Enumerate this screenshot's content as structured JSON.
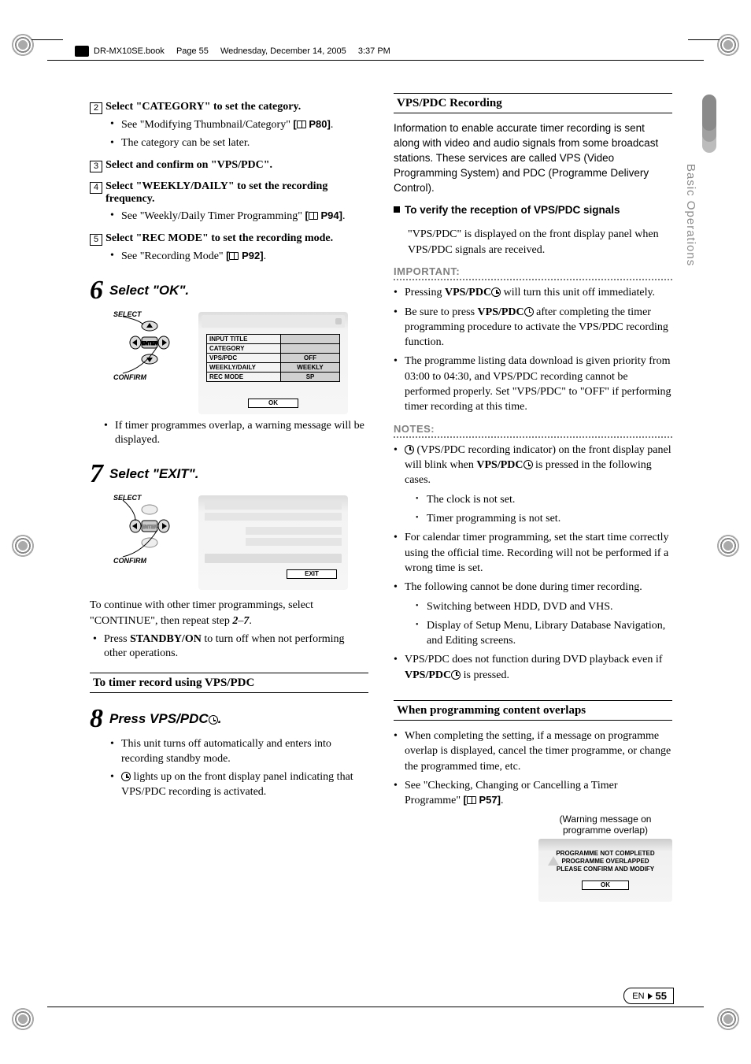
{
  "header": {
    "filename": "DR-MX10SE.book",
    "pageinfo": "Page 55",
    "date": "Wednesday, December 14, 2005",
    "time": "3:37 PM"
  },
  "sidetab": {
    "label": "Basic Operations"
  },
  "left": {
    "sub2": {
      "num": "2",
      "text": "Select \"CATEGORY\" to set the category."
    },
    "sub2_b1": "See \"Modifying Thumbnail/Category\"",
    "sub2_b1_ref": "P80",
    "sub2_b2": "The category can be set later.",
    "sub3": {
      "num": "3",
      "text": "Select and confirm on \"VPS/PDC\"."
    },
    "sub4": {
      "num": "4",
      "text": "Select \"WEEKLY/DAILY\" to set the recording frequency."
    },
    "sub4_b1": "See \"Weekly/Daily Timer Programming\"",
    "sub4_b1_ref": "P94",
    "sub5": {
      "num": "5",
      "text": "Select \"REC MODE\" to set the recording mode."
    },
    "sub5_b1": "See \"Recording Mode\"",
    "sub5_b1_ref": "P92",
    "step6": {
      "num": "6",
      "label": "Select \"OK\"."
    },
    "remote": {
      "select": "SELECT",
      "enter": "ENTER",
      "confirm": "CONFIRM"
    },
    "panel6": {
      "rows": [
        {
          "c1": "INPUT TITLE",
          "c2": ""
        },
        {
          "c1": "CATEGORY",
          "c2": ""
        },
        {
          "c1": "VPS/PDC",
          "c2": "OFF"
        },
        {
          "c1": "WEEKLY/DAILY",
          "c2": "WEEKLY"
        },
        {
          "c1": "REC MODE",
          "c2": "SP"
        }
      ],
      "ok": "OK"
    },
    "step6_note": "If timer programmes overlap, a warning message will be displayed.",
    "step7": {
      "num": "7",
      "label": "Select \"EXIT\"."
    },
    "panel7": {
      "exit": "EXIT"
    },
    "continue1": "To continue with other timer programmings, select \"CONTINUE\", then repeat step",
    "continue2_a": "2",
    "continue2_dash": "–",
    "continue2_b": "7",
    "continue2_c": ".",
    "press_standby_a": "Press ",
    "press_standby_b": "STANDBY/ON",
    "press_standby_c": " to turn off when not performing other operations.",
    "section_vps": "To timer record using VPS/PDC",
    "step8": {
      "num": "8",
      "label_a": "Press VPS/PDC",
      "label_b": "."
    },
    "step8_b1": "This unit turns off automatically and enters into recording standby mode.",
    "step8_b2": " lights up on the front display panel indicating that VPS/PDC recording is activated."
  },
  "right": {
    "head_vps": "VPS/PDC Recording",
    "intro": "Information to enable accurate timer recording is sent along with video and audio signals from some broadcast stations. These services are called VPS (Video Programming System) and PDC (Programme Delivery Control).",
    "verify_head": "To verify the reception of VPS/PDC signals",
    "verify_body": "\"VPS/PDC\" is displayed on the front display panel when VPS/PDC signals are received.",
    "important": "IMPORTANT:",
    "imp_b1_a": "Pressing ",
    "imp_b1_b": "VPS/PDC",
    "imp_b1_c": " will turn this unit off immediately.",
    "imp_b2_a": "Be sure to press ",
    "imp_b2_b": "VPS/PDC",
    "imp_b2_c": " after completing the timer programming procedure to activate the VPS/PDC recording function.",
    "imp_b3": "The programme listing data download is given priority from 03:00 to 04:30, and VPS/PDC recording cannot be performed properly. Set \"VPS/PDC\" to \"OFF\" if performing timer recording at this time.",
    "notes": "NOTES:",
    "n1_a": " (VPS/PDC recording indicator) on the front display panel will blink when ",
    "n1_b": "VPS/PDC",
    "n1_c": " is pressed in the following cases.",
    "n1_s1": "The clock is not set.",
    "n1_s2": "Timer programming is not set.",
    "n2": "For calendar timer programming, set the start time correctly using the official time. Recording will not be performed if a wrong time is set.",
    "n3": "The following cannot be done during timer recording.",
    "n3_s1": "Switching between HDD, DVD and VHS.",
    "n3_s2": "Display of Setup Menu, Library Database Navigation, and Editing screens.",
    "n4_a": "VPS/PDC does not function during DVD playback even if ",
    "n4_b": "VPS/PDC",
    "n4_c": " is pressed.",
    "head_overlap": "When programming content overlaps",
    "ov_b1": "When completing the setting, if a message on programme overlap is displayed, cancel the timer programme, or change the programmed time, etc.",
    "ov_b2_a": "See \"Checking, Changing or Cancelling a Timer Programme\" ",
    "ov_b2_ref": "P57",
    "warn_cap": "(Warning message on programme overlap)",
    "warn_l1": "PROGRAMME NOT COMPLETED",
    "warn_l2": "PROGRAMME OVERLAPPED",
    "warn_l3": "PLEASE CONFIRM AND MODIFY",
    "warn_ok": "OK"
  },
  "footer": {
    "lang": "EN",
    "page": "55"
  }
}
